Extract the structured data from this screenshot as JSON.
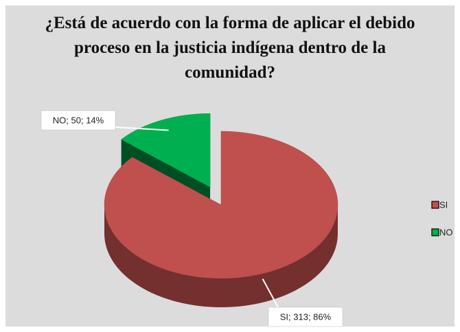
{
  "chart_data": {
    "type": "pie",
    "title": "¿Está de acuerdo con la forma de aplicar el debido proceso en la justicia indígena dentro de la comunidad?",
    "categories": [
      "SI",
      "NO"
    ],
    "values": [
      313,
      50
    ],
    "value_labels": [
      "SI; 313; 86%",
      "NO; 50; 14%"
    ],
    "colors": [
      "#c0504d",
      "#00b050"
    ],
    "legend": "right"
  }
}
